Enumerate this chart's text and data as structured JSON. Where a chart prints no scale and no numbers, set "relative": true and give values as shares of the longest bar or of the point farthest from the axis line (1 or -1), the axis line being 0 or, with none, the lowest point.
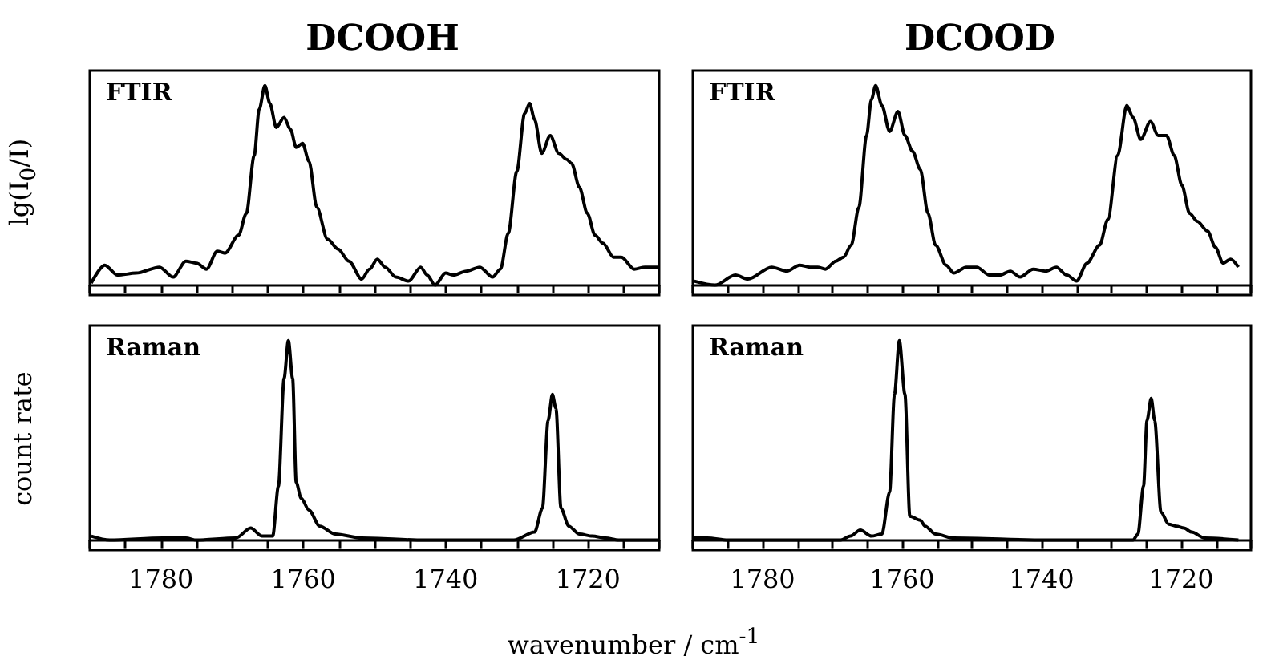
{
  "chart_data": [
    {
      "type": "line",
      "title": "DCOOH",
      "ylabel": "lg(I$_{0}$/I)",
      "annotations": [
        "FTIR"
      ],
      "relative": true,
      "tick_labels": false,
      "xlim": [
        1790,
        1710
      ],
      "xticks": [
        {
          "value": 1790,
          "label": null
        },
        {
          "value": 1785,
          "label": null
        },
        1780,
        {
          "value": 1775,
          "label": null
        },
        {
          "value": 1770,
          "label": null
        },
        {
          "value": 1765,
          "label": null
        },
        1760,
        {
          "value": 1755,
          "label": null
        },
        {
          "value": 1750,
          "label": null
        },
        {
          "value": 1745,
          "label": null
        },
        1740,
        {
          "value": 1735,
          "label": null
        },
        {
          "value": 1730,
          "label": null
        },
        {
          "value": 1725,
          "label": null
        },
        1720,
        {
          "value": 1715,
          "label": null
        },
        {
          "value": 1710,
          "label": null
        }
      ],
      "series": [
        {
          "color": "#000000",
          "x": [
            1789.8,
            1787.9,
            1786.1,
            1783.5,
            1780.2,
            1778.3,
            1776.5,
            1775.0,
            1773.6,
            1772.1,
            1771.0,
            1769.1,
            1768.0,
            1766.9,
            1766.2,
            1765.4,
            1764.7,
            1763.8,
            1762.7,
            1761.8,
            1761.0,
            1760.1,
            1759.2,
            1758.1,
            1756.6,
            1755.1,
            1753.6,
            1751.8,
            1750.7,
            1749.6,
            1748.5,
            1747.0,
            1745.2,
            1743.5,
            1742.6,
            1741.5,
            1740.0,
            1738.9,
            1737.1,
            1735.2,
            1733.4,
            1732.3,
            1731.2,
            1730.0,
            1728.9,
            1728.2,
            1727.5,
            1726.5,
            1725.3,
            1724.1,
            1723.0,
            1722.3,
            1721.2,
            1720.1,
            1719.0,
            1717.9,
            1716.4,
            1715.3,
            1713.5,
            1712.0,
            1710
          ],
          "values": [
            0.01,
            0.1,
            0.05,
            0.06,
            0.09,
            0.04,
            0.12,
            0.11,
            0.08,
            0.17,
            0.16,
            0.25,
            0.36,
            0.65,
            0.88,
            1.0,
            0.91,
            0.79,
            0.84,
            0.78,
            0.69,
            0.71,
            0.62,
            0.39,
            0.23,
            0.18,
            0.12,
            0.03,
            0.08,
            0.13,
            0.09,
            0.04,
            0.02,
            0.09,
            0.05,
            0,
            0.06,
            0.05,
            0.07,
            0.09,
            0.04,
            0.08,
            0.26,
            0.57,
            0.86,
            0.91,
            0.83,
            0.66,
            0.75,
            0.66,
            0.63,
            0.61,
            0.49,
            0.36,
            0.25,
            0.21,
            0.14,
            0.14,
            0.08,
            0.09,
            0.09
          ]
        }
      ]
    },
    {
      "type": "line",
      "title": "DCOOD",
      "annotations": [
        "FTIR"
      ],
      "relative": true,
      "tick_labels": false,
      "xlim": [
        1790,
        1710
      ],
      "xticks": [
        {
          "value": 1790,
          "label": null
        },
        {
          "value": 1785,
          "label": null
        },
        1780,
        {
          "value": 1775,
          "label": null
        },
        {
          "value": 1770,
          "label": null
        },
        {
          "value": 1765,
          "label": null
        },
        1760,
        {
          "value": 1755,
          "label": null
        },
        {
          "value": 1750,
          "label": null
        },
        {
          "value": 1745,
          "label": null
        },
        1740,
        {
          "value": 1735,
          "label": null
        },
        {
          "value": 1730,
          "label": null
        },
        {
          "value": 1725,
          "label": null
        },
        1720,
        {
          "value": 1715,
          "label": null
        },
        {
          "value": 1710,
          "label": null
        }
      ],
      "series": [
        {
          "color": "#000000",
          "x": [
            1789.8,
            1786.8,
            1783.9,
            1782.1,
            1778.7,
            1776.5,
            1774.7,
            1773.2,
            1772.1,
            1771.0,
            1769.5,
            1768.4,
            1767.3,
            1766.2,
            1765.1,
            1764.4,
            1763.8,
            1762.9,
            1761.8,
            1760.6,
            1759.6,
            1758.5,
            1757.4,
            1756.3,
            1755.2,
            1753.7,
            1752.6,
            1750.8,
            1749.3,
            1747.5,
            1746.0,
            1744.5,
            1743.1,
            1741.2,
            1739.4,
            1737.9,
            1736.4,
            1735.0,
            1733.5,
            1731.7,
            1730.5,
            1729.1,
            1727.8,
            1726.9,
            1725.8,
            1724.4,
            1723.3,
            1722.1,
            1721.0,
            1719.9,
            1718.8,
            1717.7,
            1716.2,
            1715.1,
            1714.0,
            1712.9,
            1711.8
          ],
          "values": [
            0.02,
            0,
            0.05,
            0.03,
            0.09,
            0.07,
            0.1,
            0.09,
            0.09,
            0.08,
            0.12,
            0.14,
            0.2,
            0.39,
            0.75,
            0.93,
            1.0,
            0.9,
            0.77,
            0.87,
            0.75,
            0.67,
            0.58,
            0.36,
            0.2,
            0.1,
            0.06,
            0.09,
            0.09,
            0.05,
            0.05,
            0.07,
            0.04,
            0.08,
            0.07,
            0.09,
            0.05,
            0.02,
            0.11,
            0.2,
            0.33,
            0.65,
            0.9,
            0.84,
            0.73,
            0.82,
            0.75,
            0.75,
            0.65,
            0.5,
            0.36,
            0.32,
            0.27,
            0.19,
            0.11,
            0.13,
            0.09
          ]
        }
      ]
    },
    {
      "type": "line",
      "ylabel": "count rate",
      "xlabel": "wavenumber / cm$^{-1}$",
      "annotations": [
        "Raman"
      ],
      "relative": true,
      "tick_labels": "x",
      "xlim": [
        1790,
        1710
      ],
      "xticks": [
        {
          "value": 1790,
          "label": null
        },
        {
          "value": 1785,
          "label": null
        },
        1780,
        {
          "value": 1775,
          "label": null
        },
        {
          "value": 1770,
          "label": null
        },
        {
          "value": 1765,
          "label": null
        },
        1760,
        {
          "value": 1755,
          "label": null
        },
        {
          "value": 1750,
          "label": null
        },
        {
          "value": 1745,
          "label": null
        },
        1740,
        {
          "value": 1735,
          "label": null
        },
        {
          "value": 1730,
          "label": null
        },
        {
          "value": 1725,
          "label": null
        },
        1720,
        {
          "value": 1715,
          "label": null
        },
        {
          "value": 1710,
          "label": null
        }
      ],
      "series": [
        {
          "color": "#000000",
          "x": [
            1789.8,
            1787.2,
            1779.8,
            1776.5,
            1775.0,
            1769.5,
            1767.4,
            1765.8,
            1764.3,
            1763.5,
            1762.7,
            1762.1,
            1761.5,
            1761.0,
            1760.3,
            1759.2,
            1757.7,
            1755.5,
            1751.8,
            1743.0,
            1730.4,
            1727.5,
            1726.4,
            1725.6,
            1725.0,
            1724.5,
            1723.8,
            1722.7,
            1721.2,
            1719.4,
            1717.5,
            1715.7,
            1710
          ],
          "values": [
            0.02,
            0,
            0.01,
            0.01,
            0,
            0.01,
            0.06,
            0.02,
            0.02,
            0.27,
            0.81,
            1,
            0.81,
            0.29,
            0.21,
            0.15,
            0.07,
            0.03,
            0.01,
            0,
            0,
            0.04,
            0.16,
            0.6,
            0.73,
            0.66,
            0.16,
            0.07,
            0.03,
            0.02,
            0.01,
            0,
            0
          ]
        }
      ]
    },
    {
      "type": "line",
      "annotations": [
        "Raman"
      ],
      "relative": true,
      "tick_labels": "x",
      "xlim": [
        1790,
        1710
      ],
      "xticks": [
        {
          "value": 1790,
          "label": null
        },
        {
          "value": 1785,
          "label": null
        },
        1780,
        {
          "value": 1775,
          "label": null
        },
        {
          "value": 1770,
          "label": null
        },
        {
          "value": 1765,
          "label": null
        },
        1760,
        {
          "value": 1755,
          "label": null
        },
        {
          "value": 1750,
          "label": null
        },
        {
          "value": 1745,
          "label": null
        },
        1740,
        {
          "value": 1735,
          "label": null
        },
        {
          "value": 1730,
          "label": null
        },
        {
          "value": 1725,
          "label": null
        },
        1720,
        {
          "value": 1715,
          "label": null
        },
        {
          "value": 1710,
          "label": null
        }
      ],
      "series": [
        {
          "color": "#000000",
          "x": [
            1789.8,
            1787.9,
            1785.0,
            1768.8,
            1767.4,
            1766.0,
            1764.4,
            1762.9,
            1761.8,
            1761.1,
            1760.4,
            1759.6,
            1758.9,
            1757.4,
            1756.7,
            1755.2,
            1752.6,
            1739.4,
            1726.9,
            1726.2,
            1725.4,
            1724.9,
            1724.3,
            1723.8,
            1722.9,
            1721.8,
            1720.7,
            1719.6,
            1718.5,
            1716.6,
            1711.8
          ],
          "values": [
            0.01,
            0.01,
            0,
            0,
            0.02,
            0.05,
            0.02,
            0.03,
            0.24,
            0.73,
            1,
            0.73,
            0.12,
            0.1,
            0.07,
            0.03,
            0.01,
            0,
            0,
            0.03,
            0.27,
            0.6,
            0.71,
            0.6,
            0.14,
            0.08,
            0.07,
            0.06,
            0.04,
            0.01,
            0
          ]
        }
      ]
    }
  ]
}
